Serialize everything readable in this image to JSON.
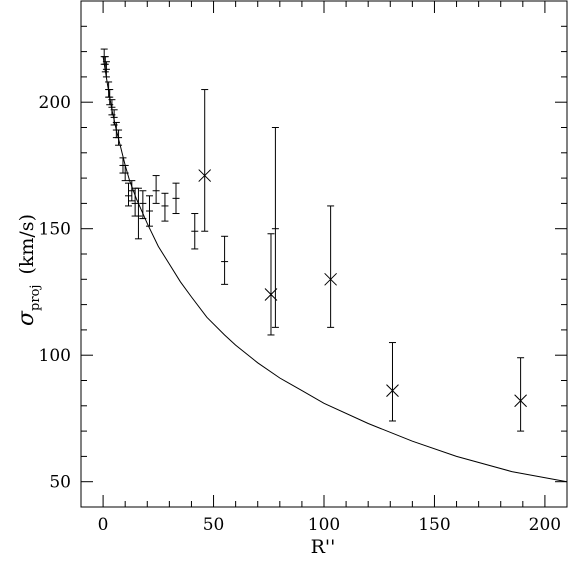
{
  "chart_data": {
    "type": "scatter",
    "xlabel": "R''",
    "ylabel": {
      "symbol": "σ",
      "subscript": "proj",
      "units": "(km/s)"
    },
    "xlim": [
      -10,
      210
    ],
    "ylim": [
      40,
      240
    ],
    "xticks": [
      0,
      50,
      100,
      150,
      200
    ],
    "yticks": [
      50,
      100,
      150,
      200
    ],
    "grid": false,
    "series": [
      {
        "marker": "errorbar",
        "points": [
          {
            "x": 0.5,
            "y": 218,
            "lo": 215,
            "hi": 221
          },
          {
            "x": 1.0,
            "y": 215,
            "lo": 212,
            "hi": 218
          },
          {
            "x": 1.5,
            "y": 213,
            "lo": 210,
            "hi": 216
          },
          {
            "x": 2.5,
            "y": 205,
            "lo": 202,
            "hi": 208
          },
          {
            "x": 3.0,
            "y": 202,
            "lo": 199,
            "hi": 205
          },
          {
            "x": 4.0,
            "y": 198,
            "lo": 195,
            "hi": 201
          },
          {
            "x": 5.0,
            "y": 194,
            "lo": 191,
            "hi": 197
          },
          {
            "x": 6.0,
            "y": 189,
            "lo": 186,
            "hi": 192
          },
          {
            "x": 7.0,
            "y": 186,
            "lo": 183,
            "hi": 189
          },
          {
            "x": 9.0,
            "y": 175,
            "lo": 172,
            "hi": 178
          },
          {
            "x": 10.0,
            "y": 172,
            "lo": 169,
            "hi": 175
          },
          {
            "x": 11.5,
            "y": 163,
            "lo": 159,
            "hi": 168
          },
          {
            "x": 13.0,
            "y": 165,
            "lo": 161,
            "hi": 169
          },
          {
            "x": 14.5,
            "y": 160,
            "lo": 155,
            "hi": 166
          },
          {
            "x": 16.0,
            "y": 155,
            "lo": 146,
            "hi": 166
          },
          {
            "x": 18.0,
            "y": 160,
            "lo": 154,
            "hi": 165
          },
          {
            "x": 21.0,
            "y": 157,
            "lo": 151,
            "hi": 163
          },
          {
            "x": 24.0,
            "y": 165,
            "lo": 160,
            "hi": 171
          },
          {
            "x": 28.0,
            "y": 159,
            "lo": 153,
            "hi": 164
          },
          {
            "x": 33.0,
            "y": 162,
            "lo": 156,
            "hi": 168
          },
          {
            "x": 41.5,
            "y": 149,
            "lo": 142,
            "hi": 156
          },
          {
            "x": 55.0,
            "y": 137,
            "lo": 128,
            "hi": 147
          },
          {
            "x": 78.0,
            "y": 150,
            "lo": 111,
            "hi": 190
          }
        ]
      },
      {
        "marker": "cross",
        "points": [
          {
            "x": 46.0,
            "y": 171,
            "lo": 149,
            "hi": 205
          },
          {
            "x": 76.0,
            "y": 124,
            "lo": 108,
            "hi": 148
          },
          {
            "x": 103.0,
            "y": 130,
            "lo": 111,
            "hi": 159
          },
          {
            "x": 131.0,
            "y": 86,
            "lo": 74,
            "hi": 105
          },
          {
            "x": 189.0,
            "y": 82,
            "lo": 70,
            "hi": 99
          }
        ]
      },
      {
        "marker": "line",
        "points": [
          {
            "x": 0.0,
            "y": 218
          },
          {
            "x": 2.0,
            "y": 207
          },
          {
            "x": 4.0,
            "y": 197
          },
          {
            "x": 6.0,
            "y": 189
          },
          {
            "x": 8.0,
            "y": 182
          },
          {
            "x": 10.0,
            "y": 175
          },
          {
            "x": 12.0,
            "y": 169
          },
          {
            "x": 15.0,
            "y": 162
          },
          {
            "x": 20.0,
            "y": 152
          },
          {
            "x": 25.0,
            "y": 143
          },
          {
            "x": 30.0,
            "y": 136
          },
          {
            "x": 35.0,
            "y": 129
          },
          {
            "x": 40.0,
            "y": 123
          },
          {
            "x": 47.0,
            "y": 115
          },
          {
            "x": 55.0,
            "y": 108
          },
          {
            "x": 60.0,
            "y": 104
          },
          {
            "x": 70.0,
            "y": 97
          },
          {
            "x": 80.0,
            "y": 91
          },
          {
            "x": 90.0,
            "y": 86
          },
          {
            "x": 100.0,
            "y": 81
          },
          {
            "x": 120.0,
            "y": 73
          },
          {
            "x": 140.0,
            "y": 66
          },
          {
            "x": 160.0,
            "y": 60
          },
          {
            "x": 185.0,
            "y": 54
          },
          {
            "x": 210.0,
            "y": 50
          }
        ]
      }
    ]
  }
}
